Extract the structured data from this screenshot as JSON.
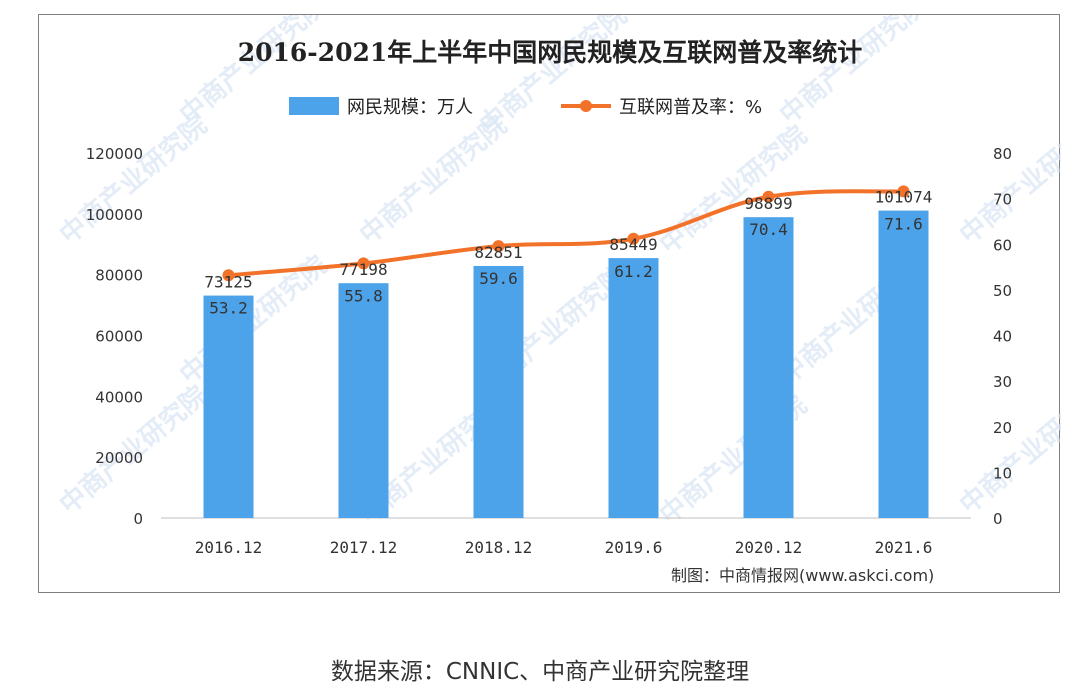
{
  "chart_data": {
    "type": "bar",
    "title": "2016-2021年上半年中国网民规模及互联网普及率统计",
    "categories": [
      "2016.12",
      "2017.12",
      "2018.12",
      "2019.6",
      "2020.12",
      "2021.6"
    ],
    "series": [
      {
        "name": "网民规模：万人",
        "type": "bar",
        "axis": "left",
        "values": [
          73125,
          77198,
          82851,
          85449,
          98899,
          101074
        ]
      },
      {
        "name": "互联网普及率：%",
        "type": "line",
        "axis": "right",
        "values": [
          53.2,
          55.8,
          59.6,
          61.2,
          70.4,
          71.6
        ]
      }
    ],
    "ylim_left": [
      0,
      120000
    ],
    "yticks_left": [
      0,
      20000,
      40000,
      60000,
      80000,
      100000,
      120000
    ],
    "ylim_right": [
      0,
      80
    ],
    "yticks_right": [
      0,
      10,
      20,
      30,
      40,
      50,
      60,
      70,
      80
    ],
    "colors": {
      "bar": "#4da3ea",
      "line": "#f37229"
    },
    "legend_position": "top",
    "grid": false
  },
  "credit": "制图：中商情报网(www.askci.com)",
  "source_note": "数据来源：CNNIC、中商产业研究院整理",
  "watermark": "中商产业研究院"
}
